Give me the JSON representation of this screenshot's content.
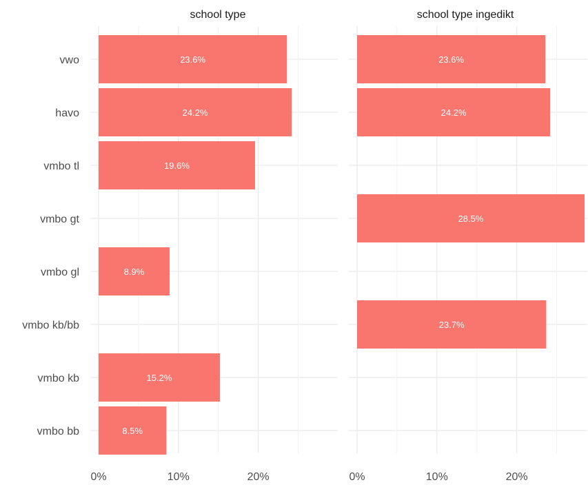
{
  "chart_data": {
    "type": "bar",
    "orientation": "horizontal",
    "categories": [
      "vwo",
      "havo",
      "vmbo tl",
      "vmbo gt",
      "vmbo gl",
      "vmbo kb/bb",
      "vmbo kb",
      "vmbo bb"
    ],
    "panels": [
      {
        "title": "school type",
        "values": [
          23.6,
          24.2,
          19.6,
          null,
          8.9,
          null,
          15.2,
          8.5
        ],
        "labels": [
          "23.6%",
          "24.2%",
          "19.6%",
          "",
          "8.9%",
          "",
          "15.2%",
          "8.5%"
        ]
      },
      {
        "title": "school type ingedikt",
        "values": [
          23.6,
          24.2,
          null,
          28.5,
          null,
          23.7,
          null,
          null
        ],
        "labels": [
          "23.6%",
          "24.2%",
          "",
          "28.5%",
          "",
          "23.7%",
          "",
          ""
        ]
      }
    ],
    "x_ticks": [
      0,
      10,
      20
    ],
    "x_tick_labels": [
      "0%",
      "10%",
      "20%"
    ],
    "xlim": [
      0,
      28.5
    ],
    "bar_color": "#F8766D",
    "grid": true
  }
}
